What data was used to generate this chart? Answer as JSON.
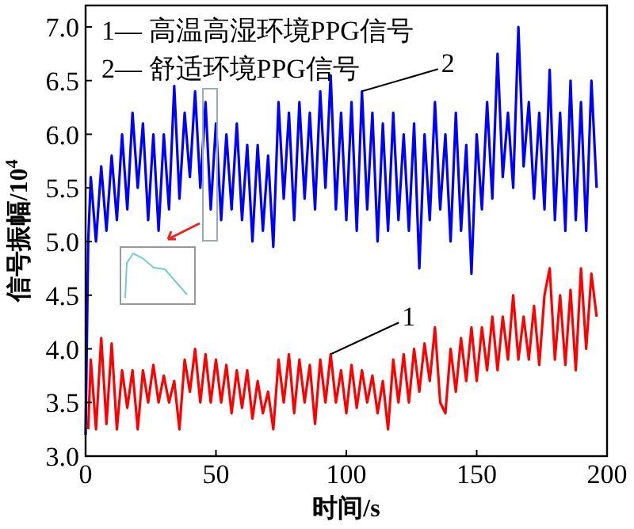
{
  "chart_data": {
    "type": "line",
    "xlabel": "时间/s",
    "ylabel": "信号振幅/10$^{4}$",
    "xlim": [
      0,
      200
    ],
    "ylim": [
      3.0,
      7.2
    ],
    "xticks": [
      0,
      50,
      100,
      150,
      200
    ],
    "yticks": [
      {
        "value": 3,
        "label": "3.0"
      },
      {
        "value": 3.5,
        "label": "3.5"
      },
      {
        "value": 4,
        "label": "4.0"
      },
      {
        "value": 4.5,
        "label": "4.5"
      },
      {
        "value": 5,
        "label": "5.0"
      },
      {
        "value": 5.5,
        "label": "5.5"
      },
      {
        "value": 6,
        "label": "6.0"
      },
      {
        "value": 6.5,
        "label": "6.5"
      },
      {
        "value": 7,
        "label": "7.0"
      }
    ],
    "grid": false,
    "marker": "none",
    "line_style": "solid",
    "series": [
      {
        "color": "#0000ff",
        "x": [
          0,
          1,
          2,
          4,
          6,
          8,
          10,
          12,
          14,
          16,
          18,
          20,
          22,
          24,
          26,
          28,
          30,
          32,
          34,
          36,
          38,
          40,
          42,
          44,
          46,
          48,
          50,
          52,
          54,
          56,
          58,
          60,
          62,
          64,
          66,
          68,
          70,
          72,
          74,
          76,
          78,
          80,
          82,
          84,
          86,
          88,
          90,
          92,
          94,
          96,
          98,
          100,
          102,
          104,
          106,
          108,
          110,
          112,
          114,
          116,
          118,
          120,
          122,
          124,
          126,
          128,
          130,
          132,
          134,
          136,
          138,
          140,
          142,
          144,
          146,
          148,
          150,
          152,
          154,
          156,
          158,
          160,
          162,
          164,
          166,
          168,
          170,
          172,
          174,
          176,
          178,
          180,
          182,
          184,
          186,
          188,
          190,
          192,
          194,
          196
        ],
        "values": [
          3.2,
          5.0,
          5.6,
          5.0,
          5.7,
          5.1,
          5.8,
          5.2,
          6.0,
          5.3,
          6.2,
          5.5,
          6.1,
          5.2,
          6.0,
          5.1,
          6.0,
          5.3,
          6.45,
          5.4,
          6.2,
          5.6,
          6.4,
          5.5,
          6.3,
          5.3,
          6.1,
          5.2,
          6.0,
          5.3,
          6.1,
          5.2,
          5.9,
          5.0,
          5.9,
          5.1,
          5.8,
          4.95,
          6.3,
          5.4,
          6.2,
          5.2,
          6.3,
          5.4,
          6.2,
          5.3,
          6.4,
          5.5,
          6.55,
          5.3,
          6.2,
          5.2,
          6.3,
          5.1,
          6.4,
          5.3,
          6.2,
          5.0,
          6.1,
          5.1,
          6.2,
          5.2,
          6.0,
          5.1,
          6.1,
          4.75,
          6.0,
          5.2,
          6.3,
          5.3,
          6.0,
          5.0,
          6.2,
          5.1,
          5.9,
          4.7,
          6.0,
          5.3,
          6.3,
          5.4,
          6.75,
          5.6,
          6.2,
          5.5,
          7.0,
          5.7,
          6.3,
          5.4,
          6.2,
          5.3,
          6.6,
          5.2,
          6.2,
          5.1,
          6.5,
          5.2,
          6.3,
          5.1,
          6.5,
          5.5
        ]
      },
      {
        "color": "#ff0000",
        "x": [
          1,
          2,
          4,
          6,
          8,
          10,
          12,
          14,
          16,
          18,
          20,
          22,
          24,
          26,
          28,
          30,
          32,
          34,
          36,
          38,
          40,
          42,
          44,
          46,
          48,
          50,
          52,
          54,
          56,
          58,
          60,
          62,
          64,
          66,
          68,
          70,
          72,
          74,
          76,
          78,
          80,
          82,
          84,
          86,
          88,
          90,
          92,
          94,
          96,
          98,
          100,
          102,
          104,
          106,
          108,
          110,
          112,
          114,
          116,
          118,
          120,
          122,
          124,
          126,
          128,
          130,
          132,
          134,
          136,
          138,
          140,
          142,
          144,
          146,
          148,
          150,
          152,
          154,
          156,
          158,
          160,
          162,
          164,
          166,
          168,
          170,
          172,
          174,
          176,
          178,
          180,
          182,
          184,
          186,
          188,
          190,
          192,
          194,
          196
        ],
        "values": [
          3.25,
          3.9,
          3.25,
          4.1,
          3.3,
          4.05,
          3.25,
          3.8,
          3.45,
          3.8,
          3.25,
          3.8,
          3.5,
          3.85,
          3.5,
          3.75,
          3.5,
          3.7,
          3.25,
          3.9,
          3.6,
          4.0,
          3.5,
          3.95,
          3.5,
          3.9,
          3.5,
          3.85,
          3.4,
          3.8,
          3.45,
          3.8,
          3.35,
          3.7,
          3.4,
          3.6,
          3.25,
          3.9,
          3.5,
          3.95,
          3.4,
          3.9,
          3.5,
          3.85,
          3.3,
          3.9,
          3.5,
          3.95,
          3.5,
          3.8,
          3.4,
          3.85,
          3.45,
          3.8,
          3.5,
          3.75,
          3.4,
          3.7,
          3.25,
          3.9,
          3.5,
          3.95,
          3.5,
          4.0,
          3.6,
          4.05,
          3.7,
          4.2,
          3.5,
          3.4,
          4.0,
          3.6,
          4.1,
          3.7,
          4.2,
          3.7,
          4.2,
          3.8,
          4.3,
          3.8,
          4.3,
          3.9,
          4.5,
          3.9,
          4.3,
          3.9,
          4.4,
          3.85,
          4.5,
          4.75,
          3.9,
          4.5,
          3.85,
          4.55,
          3.8,
          4.75,
          4.0,
          4.7,
          4.3
        ]
      }
    ],
    "annotations": [
      "1— 高温高湿环境PPG信号",
      "2— 舒适环境PPG信号",
      {
        "text": "1",
        "x": 94,
        "y": 3.95
      },
      {
        "text": "2",
        "x": 106,
        "y": 6.4
      }
    ]
  }
}
